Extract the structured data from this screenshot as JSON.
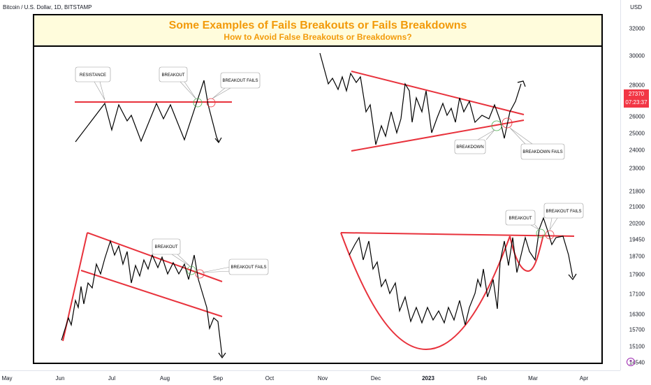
{
  "header": {
    "symbol": "Bitcoin / U.S. Dollar, 1D, BITSTAMP"
  },
  "banner": {
    "title": "Some Examples of Fails Breakouts or Fails Breakdowns",
    "subtitle": "How to Avoid False Breakouts or Breakdowns?"
  },
  "price_axis": {
    "currency": "USD",
    "current_price": "27370",
    "countdown": "07:23:37"
  },
  "colors": {
    "accent": "#f29a0a",
    "support_resistance": "#e8323c",
    "price_tag": "#f23645"
  },
  "chart_data": {
    "type": "line",
    "title": "Some Examples of Fails Breakouts or Fails Breakdowns",
    "subtitle": "How to Avoid False Breakouts or Breakdowns?",
    "x_ticks": [
      "May",
      "Jun",
      "Jul",
      "Aug",
      "Sep",
      "Oct",
      "Nov",
      "Dec",
      "2023",
      "Feb",
      "Mar",
      "Apr"
    ],
    "y_ticks": [
      32000,
      30000,
      28000,
      26000,
      25000,
      24000,
      23000,
      21800,
      21000,
      20200,
      19450,
      18700,
      17900,
      17100,
      16300,
      15700,
      15100,
      14540
    ],
    "y_scale": "log",
    "ylim": [
      14540,
      32000
    ],
    "callouts": [
      "RESISTANCE",
      "BREAKOUT",
      "BREAKOUT FAILS",
      "BREAKDOWN",
      "BREAKDOWN FAILS",
      "BREAKOUT",
      "BREAKOUT FAILS",
      "BREAKOUT",
      "BREAKOUT FAILS"
    ]
  }
}
